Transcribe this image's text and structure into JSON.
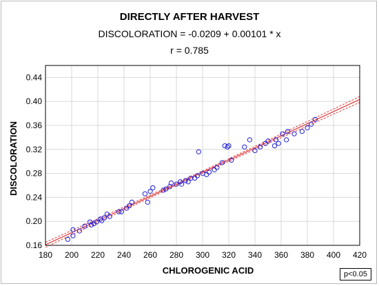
{
  "chart_data": {
    "type": "scatter",
    "title": "DIRECTLY AFTER HARVEST",
    "equation": "DISCOLORATION = -0.0209 + 0.00101 * x",
    "correlation": "r = 0.785",
    "xlabel": "CHLOROGENIC ACID",
    "ylabel": "DISCOLORATION",
    "xlim": [
      180,
      420
    ],
    "ylim": [
      0.16,
      0.46
    ],
    "xticks": [
      180,
      200,
      220,
      240,
      260,
      280,
      300,
      320,
      340,
      360,
      380,
      400,
      420
    ],
    "yticks": [
      0.16,
      0.2,
      0.24,
      0.28,
      0.32,
      0.36,
      0.4,
      0.44
    ],
    "ytick_labels": [
      "0.16",
      "0.20",
      "0.24",
      "0.28",
      "0.32",
      "0.36",
      "0.40",
      "0.44"
    ],
    "fit": {
      "intercept": -0.0209,
      "slope": 0.00101,
      "x_range": [
        180,
        420
      ],
      "confidence_bands": true
    },
    "grid": true,
    "p_value_label": "p<0.05",
    "colors": {
      "points": "#1f1fd6",
      "fit_line": "#e03a3a",
      "grid": "#d9d9d9"
    },
    "points": [
      [
        197,
        0.17
      ],
      [
        201,
        0.176
      ],
      [
        201,
        0.186
      ],
      [
        206,
        0.184
      ],
      [
        210,
        0.192
      ],
      [
        214,
        0.199
      ],
      [
        215,
        0.194
      ],
      [
        217,
        0.196
      ],
      [
        219,
        0.199
      ],
      [
        222,
        0.204
      ],
      [
        223,
        0.201
      ],
      [
        225,
        0.206
      ],
      [
        227,
        0.212
      ],
      [
        229,
        0.208
      ],
      [
        236,
        0.216
      ],
      [
        238,
        0.216
      ],
      [
        242,
        0.222
      ],
      [
        244,
        0.226
      ],
      [
        246,
        0.232
      ],
      [
        256,
        0.246
      ],
      [
        258,
        0.232
      ],
      [
        260,
        0.25
      ],
      [
        262,
        0.256
      ],
      [
        270,
        0.252
      ],
      [
        272,
        0.254
      ],
      [
        275,
        0.258
      ],
      [
        276,
        0.264
      ],
      [
        280,
        0.262
      ],
      [
        283,
        0.266
      ],
      [
        284,
        0.262
      ],
      [
        287,
        0.268
      ],
      [
        289,
        0.266
      ],
      [
        291,
        0.272
      ],
      [
        294,
        0.272
      ],
      [
        296,
        0.276
      ],
      [
        297,
        0.316
      ],
      [
        300,
        0.28
      ],
      [
        303,
        0.278
      ],
      [
        305,
        0.282
      ],
      [
        309,
        0.286
      ],
      [
        311,
        0.29
      ],
      [
        315,
        0.298
      ],
      [
        317,
        0.326
      ],
      [
        319,
        0.324
      ],
      [
        320,
        0.326
      ],
      [
        322,
        0.302
      ],
      [
        332,
        0.324
      ],
      [
        336,
        0.336
      ],
      [
        340,
        0.318
      ],
      [
        344,
        0.324
      ],
      [
        348,
        0.33
      ],
      [
        350,
        0.334
      ],
      [
        355,
        0.326
      ],
      [
        356,
        0.336
      ],
      [
        358,
        0.33
      ],
      [
        361,
        0.346
      ],
      [
        364,
        0.336
      ],
      [
        365,
        0.35
      ],
      [
        370,
        0.346
      ],
      [
        376,
        0.35
      ],
      [
        380,
        0.356
      ],
      [
        383,
        0.362
      ],
      [
        386,
        0.37
      ]
    ]
  }
}
